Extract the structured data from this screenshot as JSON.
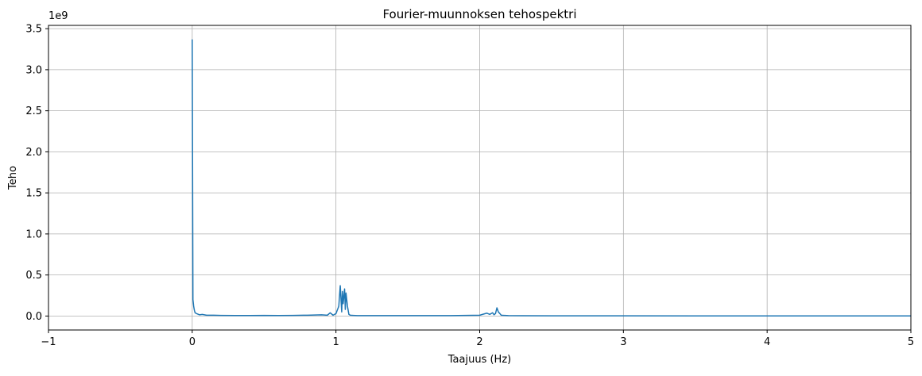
{
  "chart_data": {
    "type": "line",
    "title": "Fourier-muunnoksen tehospektri",
    "xlabel": "Taajuus (Hz)",
    "ylabel": "Teho",
    "y_scale_label": "1e9",
    "xlim": [
      -1,
      5
    ],
    "ylim": [
      -0.17,
      3.54
    ],
    "x_ticks": [
      -1,
      0,
      1,
      2,
      3,
      4,
      5
    ],
    "x_tick_labels": [
      "−1",
      "0",
      "1",
      "2",
      "3",
      "4",
      "5"
    ],
    "y_ticks": [
      0.0,
      0.5,
      1.0,
      1.5,
      2.0,
      2.5,
      3.0,
      3.5
    ],
    "y_tick_labels": [
      "0.0",
      "0.5",
      "1.0",
      "1.5",
      "2.0",
      "2.5",
      "3.0",
      "3.5"
    ],
    "grid": true,
    "line_color": "#1f77b4",
    "series": [
      {
        "x": [
          0.0,
          0.005,
          0.01,
          0.015,
          0.02,
          0.03,
          0.05,
          0.07,
          0.1,
          0.15,
          0.2,
          0.3,
          0.4,
          0.5,
          0.6,
          0.7,
          0.8,
          0.9,
          0.94,
          0.96,
          0.98,
          1.0,
          1.02,
          1.025,
          1.03,
          1.04,
          1.045,
          1.05,
          1.06,
          1.065,
          1.07,
          1.08,
          1.09,
          1.1,
          1.12,
          1.15,
          1.2,
          1.3,
          1.4,
          1.5,
          1.6,
          1.7,
          1.8,
          1.9,
          2.0,
          2.05,
          2.07,
          2.09,
          2.1,
          2.11,
          2.12,
          2.13,
          2.14,
          2.15,
          2.17,
          2.2,
          2.3,
          2.5,
          3.0,
          3.5,
          4.0,
          4.5,
          5.0
        ],
        "y": [
          3.37,
          0.2,
          0.12,
          0.07,
          0.04,
          0.03,
          0.015,
          0.02,
          0.01,
          0.01,
          0.008,
          0.006,
          0.006,
          0.008,
          0.006,
          0.008,
          0.01,
          0.015,
          0.01,
          0.04,
          0.01,
          0.03,
          0.12,
          0.25,
          0.37,
          0.05,
          0.3,
          0.15,
          0.33,
          0.08,
          0.28,
          0.12,
          0.02,
          0.01,
          0.008,
          0.005,
          0.005,
          0.005,
          0.005,
          0.005,
          0.005,
          0.005,
          0.005,
          0.008,
          0.01,
          0.035,
          0.02,
          0.04,
          0.015,
          0.03,
          0.1,
          0.05,
          0.03,
          0.01,
          0.008,
          0.005,
          0.004,
          0.003,
          0.003,
          0.002,
          0.002,
          0.002,
          0.001
        ]
      }
    ]
  }
}
